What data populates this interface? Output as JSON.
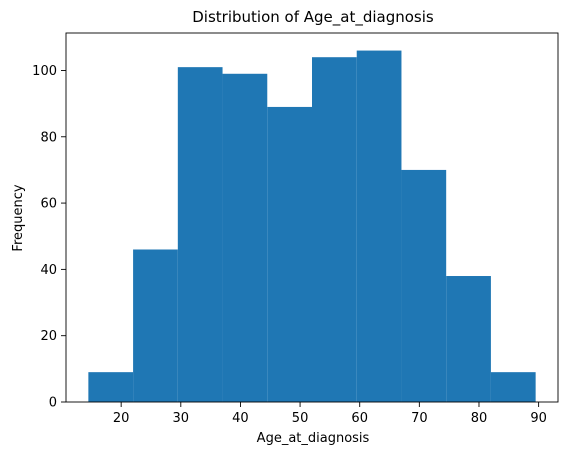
{
  "chart_data": {
    "type": "bar",
    "title": "Distribution of Age_at_diagnosis",
    "xlabel": "Age_at_diagnosis",
    "ylabel": "Frequency",
    "bins": [
      {
        "start": 14.5,
        "end": 22.0,
        "value": 9
      },
      {
        "start": 22.0,
        "end": 29.5,
        "value": 46
      },
      {
        "start": 29.5,
        "end": 37.0,
        "value": 101
      },
      {
        "start": 37.0,
        "end": 44.5,
        "value": 99
      },
      {
        "start": 44.5,
        "end": 52.0,
        "value": 89
      },
      {
        "start": 52.0,
        "end": 59.5,
        "value": 104
      },
      {
        "start": 59.5,
        "end": 67.0,
        "value": 106
      },
      {
        "start": 67.0,
        "end": 74.5,
        "value": 70
      },
      {
        "start": 74.5,
        "end": 82.0,
        "value": 38
      },
      {
        "start": 82.0,
        "end": 89.5,
        "value": 9
      }
    ],
    "xlim": [
      10.75,
      93.25
    ],
    "ylim": [
      0,
      111.3
    ],
    "xticks": [
      20,
      30,
      40,
      50,
      60,
      70,
      80,
      90
    ],
    "yticks": [
      0,
      20,
      40,
      60,
      80,
      100
    ],
    "bar_color": "#1f77b4",
    "grid": false,
    "legend": "none"
  }
}
